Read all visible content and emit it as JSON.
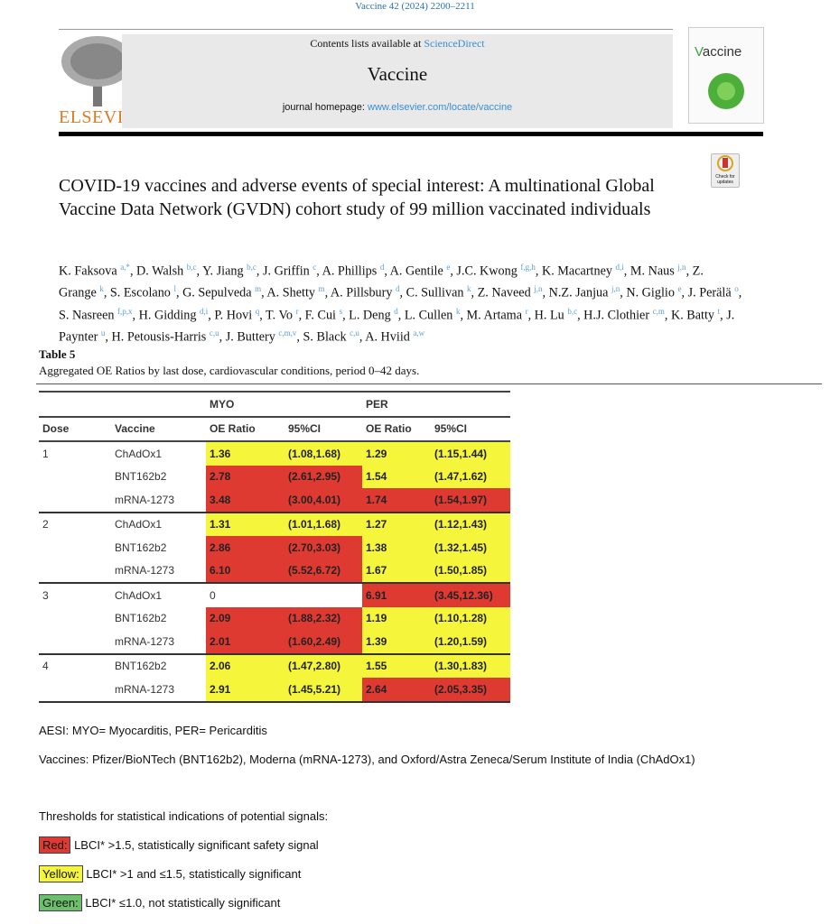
{
  "header": {
    "citation": "Vaccine 42 (2024) 2200–2211",
    "contents_prefix": "Contents lists available at ",
    "contents_link": "ScienceDirect",
    "journal_name": "Vaccine",
    "homepage_prefix": "journal homepage: ",
    "homepage_link": "www.elsevier.com/locate/vaccine",
    "publisher": "ELSEVIER",
    "cover_title": "accine",
    "cover_v": "V",
    "check_updates": "Check for updates"
  },
  "article": {
    "title": "COVID-19 vaccines and adverse events of special interest: A multinational Global Vaccine Data Network (GVDN) cohort study of 99 million vaccinated individuals",
    "authors": [
      [
        "K. Faksova",
        "a,*"
      ],
      [
        "D. Walsh",
        "b,c"
      ],
      [
        "Y. Jiang",
        "b,c"
      ],
      [
        "J. Griffin",
        "c"
      ],
      [
        "A. Phillips",
        "d"
      ],
      [
        "A. Gentile",
        "e"
      ],
      [
        "J.C. Kwong",
        "f,g,h"
      ],
      [
        "K. Macartney",
        "d,i"
      ],
      [
        "M. Naus",
        "j,n"
      ],
      [
        "Z. Grange",
        "k"
      ],
      [
        "S. Escolano",
        "l"
      ],
      [
        "G. Sepulveda",
        "m"
      ],
      [
        "A. Shetty",
        "m"
      ],
      [
        "A. Pillsbury",
        "d"
      ],
      [
        "C. Sullivan",
        "k"
      ],
      [
        "Z. Naveed",
        "j,n"
      ],
      [
        "N.Z. Janjua",
        "j,n"
      ],
      [
        "N. Giglio",
        "e"
      ],
      [
        "J. Perälä",
        "o"
      ],
      [
        "S. Nasreen",
        "f,p,x"
      ],
      [
        "H. Gidding",
        "d,i"
      ],
      [
        "P. Hovi",
        "q"
      ],
      [
        "T. Vo",
        "r"
      ],
      [
        "F. Cui",
        "s"
      ],
      [
        "L. Deng",
        "d"
      ],
      [
        "L. Cullen",
        "k"
      ],
      [
        "M. Artama",
        "r"
      ],
      [
        "H. Lu",
        "b,c"
      ],
      [
        "H.J. Clothier",
        "c,m"
      ],
      [
        "K. Batty",
        "t"
      ],
      [
        "J. Paynter",
        "u"
      ],
      [
        "H. Petousis-Harris",
        "c,u"
      ],
      [
        "J. Buttery",
        "c,m,v"
      ],
      [
        "S. Black",
        "c,u"
      ],
      [
        "A. Hviid",
        "a,w"
      ]
    ]
  },
  "table": {
    "label": "Table 5",
    "caption": "Aggregated OE Ratios by last dose, cardiovascular conditions, period 0–42 days.",
    "group_headers": [
      "MYO",
      "PER"
    ],
    "columns": [
      "Dose",
      "Vaccine",
      "OE Ratio",
      "95%CI",
      "OE Ratio",
      "95%CI"
    ],
    "colors": {
      "red": "#df3a32",
      "yellow": "#f5f53c",
      "green": "#6cc06c"
    },
    "rows": [
      {
        "dose": "1",
        "vaccine": "ChAdOx1",
        "myo_oe": "1.36",
        "myo_ci": "(1.08,1.68)",
        "myo_c": "yellow",
        "per_oe": "1.29",
        "per_ci": "(1.15,1.44)",
        "per_c": "yellow"
      },
      {
        "dose": "",
        "vaccine": "BNT162b2",
        "myo_oe": "2.78",
        "myo_ci": "(2.61,2.95)",
        "myo_c": "red",
        "per_oe": "1.54",
        "per_ci": "(1.47,1.62)",
        "per_c": "yellow"
      },
      {
        "dose": "",
        "vaccine": "mRNA-1273",
        "myo_oe": "3.48",
        "myo_ci": "(3.00,4.01)",
        "myo_c": "red",
        "per_oe": "1.74",
        "per_ci": "(1.54,1.97)",
        "per_c": "red"
      },
      {
        "dose": "2",
        "vaccine": "ChAdOx1",
        "myo_oe": "1.31",
        "myo_ci": "(1.01,1.68)",
        "myo_c": "yellow",
        "per_oe": "1.27",
        "per_ci": "(1.12,1.43)",
        "per_c": "yellow"
      },
      {
        "dose": "",
        "vaccine": "BNT162b2",
        "myo_oe": "2.86",
        "myo_ci": "(2.70,3.03)",
        "myo_c": "red",
        "per_oe": "1.38",
        "per_ci": "(1.32,1.45)",
        "per_c": "yellow"
      },
      {
        "dose": "",
        "vaccine": "mRNA-1273",
        "myo_oe": "6.10",
        "myo_ci": "(5.52,6.72)",
        "myo_c": "red",
        "per_oe": "1.67",
        "per_ci": "(1.50,1.85)",
        "per_c": "yellow"
      },
      {
        "dose": "3",
        "vaccine": "ChAdOx1",
        "myo_oe": "0",
        "myo_ci": "",
        "myo_c": "",
        "per_oe": "6.91",
        "per_ci": "(3.45,12.36)",
        "per_c": "red"
      },
      {
        "dose": "",
        "vaccine": "BNT162b2",
        "myo_oe": "2.09",
        "myo_ci": "(1.88,2.32)",
        "myo_c": "red",
        "per_oe": "1.19",
        "per_ci": "(1.10,1.28)",
        "per_c": "yellow"
      },
      {
        "dose": "",
        "vaccine": "mRNA-1273",
        "myo_oe": "2.01",
        "myo_ci": "(1.60,2.49)",
        "myo_c": "red",
        "per_oe": "1.39",
        "per_ci": "(1.20,1.59)",
        "per_c": "yellow"
      },
      {
        "dose": "4",
        "vaccine": "BNT162b2",
        "myo_oe": "2.06",
        "myo_ci": "(1.47,2.80)",
        "myo_c": "yellow",
        "per_oe": "1.55",
        "per_ci": "(1.30,1.83)",
        "per_c": "yellow"
      },
      {
        "dose": "",
        "vaccine": "mRNA-1273",
        "myo_oe": "2.91",
        "myo_ci": "(1.45,5.21)",
        "myo_c": "yellow",
        "per_oe": "2.64",
        "per_ci": "(2.05,3.35)",
        "per_c": "red"
      }
    ]
  },
  "notes": {
    "aesi": "AESI: MYO= Myocarditis, PER= Pericarditis",
    "vaccines": "Vaccines: Pfizer/BioNTech (BNT162b2), Moderna (mRNA-1273), and Oxford/Astra Zeneca/Serum Institute of India (ChAdOx1)",
    "thresholds": "Thresholds for statistical indications of potential signals:",
    "red_label": "Red:",
    "red_text": " LBCI* >1.5, statistically significant safety signal",
    "yellow_label": "Yellow:",
    "yellow_text": " LBCI* >1 and ≤1.5, statistically significant",
    "green_label": "Green:",
    "green_text": " LBCI* ≤1.0, not statistically significant"
  }
}
